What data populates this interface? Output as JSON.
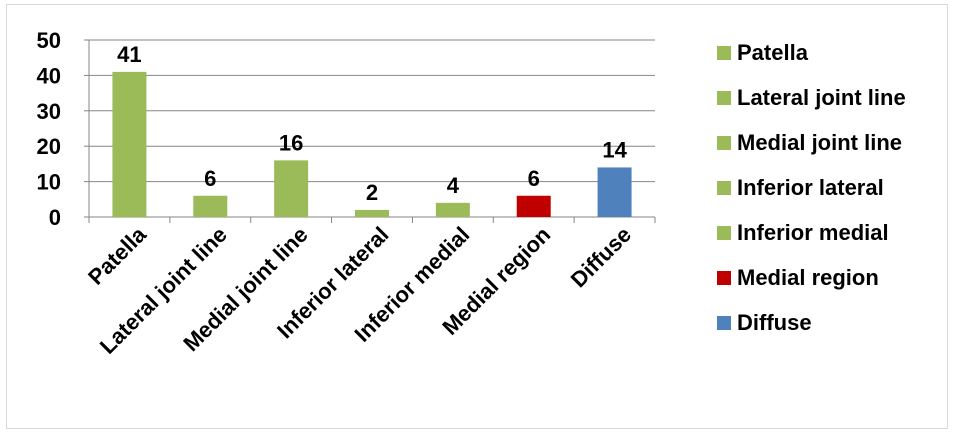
{
  "chart_data": {
    "type": "bar",
    "categories": [
      "Patella",
      "Lateral joint line",
      "Medial joint line",
      "Inferior lateral",
      "Inferior medial",
      "Medial region",
      "Diffuse"
    ],
    "values": [
      41,
      6,
      16,
      2,
      4,
      6,
      14
    ],
    "data_labels": [
      "41",
      "6",
      "16",
      "2",
      "4",
      "6",
      "14"
    ],
    "colors": [
      "#9bbb59",
      "#9bbb59",
      "#9bbb59",
      "#9bbb59",
      "#9bbb59",
      "#c00000",
      "#4f81bd"
    ],
    "ylim": [
      0,
      50
    ],
    "yticks": [
      "0",
      "10",
      "20",
      "30",
      "40",
      "50"
    ],
    "grid": true,
    "legend_position": "right",
    "title": "",
    "xlabel": "",
    "ylabel": ""
  },
  "legend": [
    {
      "label": "Patella",
      "color": "#9bbb59"
    },
    {
      "label": "Lateral joint line",
      "color": "#9bbb59"
    },
    {
      "label": "Medial joint line",
      "color": "#9bbb59"
    },
    {
      "label": "Inferior lateral",
      "color": "#9bbb59"
    },
    {
      "label": "Inferior medial",
      "color": "#9bbb59"
    },
    {
      "label": "Medial region",
      "color": "#c00000"
    },
    {
      "label": "Diffuse",
      "color": "#4f81bd"
    }
  ]
}
